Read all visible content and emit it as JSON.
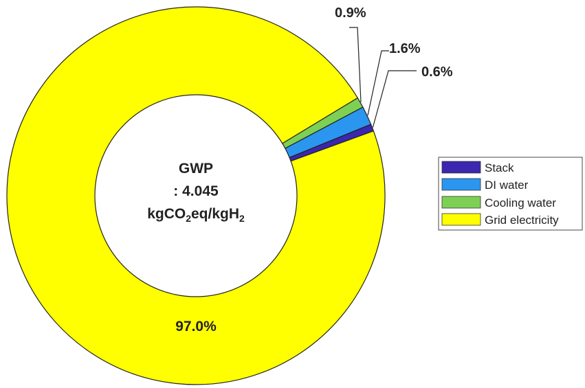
{
  "chart_data": {
    "type": "pie",
    "variant": "donut",
    "categories": [
      "Stack",
      "DI water",
      "Cooling water",
      "Grid electricity"
    ],
    "values": [
      0.6,
      1.6,
      0.9,
      97.0
    ],
    "labels": [
      "0.6%",
      "1.6%",
      "0.9%",
      "97.0%"
    ],
    "colors": [
      "#3b27b0",
      "#2b96f0",
      "#7ed055",
      "#ffff00"
    ],
    "center_text": {
      "line1": "GWP",
      "line2": ": 4.045",
      "line3_prefix": "kgCO",
      "line3_sub1": "2",
      "line3_mid": "eq/kgH",
      "line3_sub2": "2"
    },
    "legend": {
      "position": "right",
      "entries": [
        "Stack",
        "DI water",
        "Cooling water",
        "Grid electricity"
      ]
    }
  }
}
